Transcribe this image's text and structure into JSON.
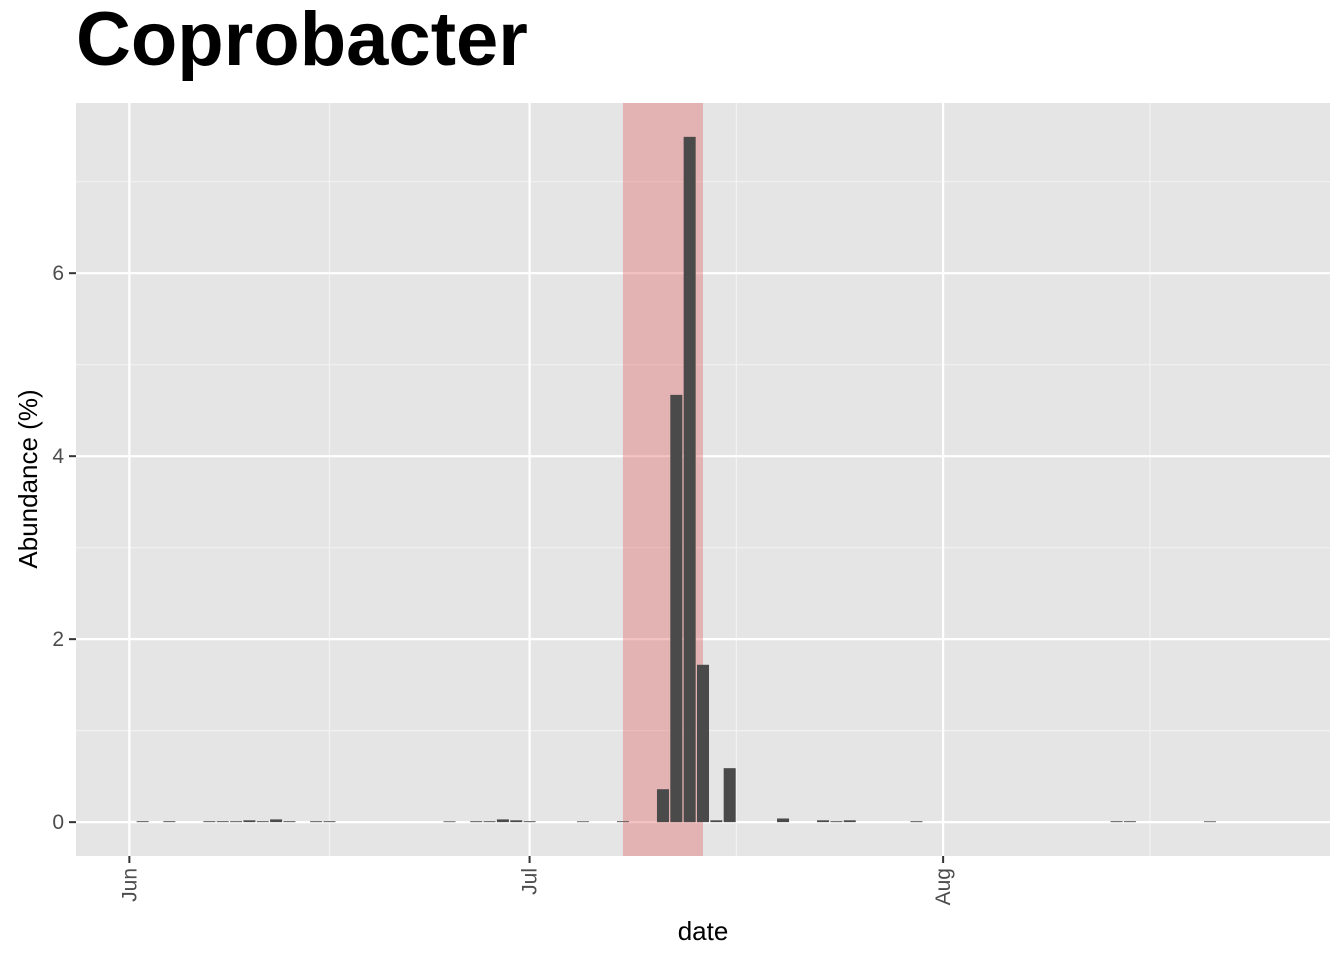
{
  "chart_data": {
    "type": "bar",
    "title": "Coprobacter",
    "xlabel": "date",
    "ylabel": "Abundance (%)",
    "xlim": [
      "2020-05-28",
      "2020-08-30"
    ],
    "ylim": [
      -0.37,
      7.86
    ],
    "y_ticks": [
      0,
      2,
      4,
      6
    ],
    "x_ticks": [
      {
        "date": "2020-06-01",
        "label": "Jun"
      },
      {
        "date": "2020-07-01",
        "label": "Jul"
      },
      {
        "date": "2020-08-01",
        "label": "Aug"
      }
    ],
    "bar_color": "#4a4a4a",
    "highlight": {
      "start": "2020-07-08",
      "end": "2020-07-14",
      "color": "#e06666",
      "opacity": 0.4
    },
    "panel_background": "#e5e5e5",
    "grid": true,
    "values": [
      {
        "date": "2020-06-02",
        "value": 0.01
      },
      {
        "date": "2020-06-04",
        "value": 0.01
      },
      {
        "date": "2020-06-07",
        "value": 0.01
      },
      {
        "date": "2020-06-08",
        "value": 0.01
      },
      {
        "date": "2020-06-09",
        "value": 0.01
      },
      {
        "date": "2020-06-10",
        "value": 0.02
      },
      {
        "date": "2020-06-11",
        "value": 0.01
      },
      {
        "date": "2020-06-12",
        "value": 0.03
      },
      {
        "date": "2020-06-13",
        "value": 0.01
      },
      {
        "date": "2020-06-15",
        "value": 0.01
      },
      {
        "date": "2020-06-16",
        "value": 0.01
      },
      {
        "date": "2020-06-25",
        "value": 0.005
      },
      {
        "date": "2020-06-27",
        "value": 0.01
      },
      {
        "date": "2020-06-28",
        "value": 0.01
      },
      {
        "date": "2020-06-29",
        "value": 0.03
      },
      {
        "date": "2020-06-30",
        "value": 0.02
      },
      {
        "date": "2020-07-01",
        "value": 0.01
      },
      {
        "date": "2020-07-05",
        "value": 0.005
      },
      {
        "date": "2020-07-08",
        "value": 0.01
      },
      {
        "date": "2020-07-11",
        "value": 0.36
      },
      {
        "date": "2020-07-12",
        "value": 4.67
      },
      {
        "date": "2020-07-13",
        "value": 7.49
      },
      {
        "date": "2020-07-14",
        "value": 1.72
      },
      {
        "date": "2020-07-15",
        "value": 0.02
      },
      {
        "date": "2020-07-16",
        "value": 0.59
      },
      {
        "date": "2020-07-20",
        "value": 0.04
      },
      {
        "date": "2020-07-23",
        "value": 0.02
      },
      {
        "date": "2020-07-24",
        "value": 0.01
      },
      {
        "date": "2020-07-25",
        "value": 0.02
      },
      {
        "date": "2020-07-30",
        "value": 0.01
      },
      {
        "date": "2020-08-14",
        "value": 0.01
      },
      {
        "date": "2020-08-15",
        "value": 0.01
      },
      {
        "date": "2020-08-21",
        "value": 0.005
      }
    ]
  }
}
